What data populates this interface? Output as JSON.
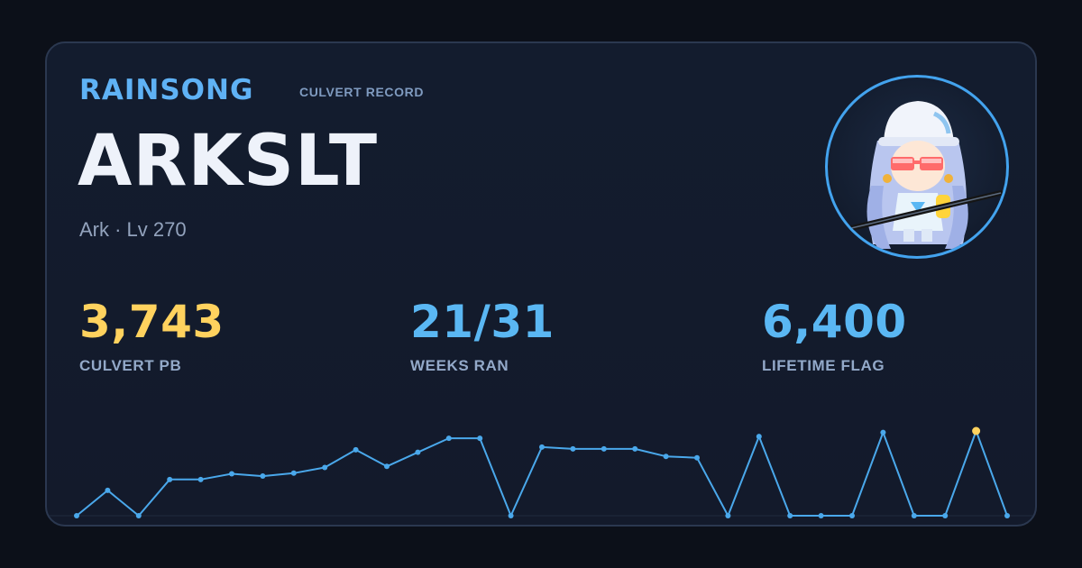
{
  "header": {
    "brand": "RAINSONG",
    "subtitle": "CULVERT RECORD"
  },
  "character": {
    "name": "ARKSLT",
    "info": "Ark · Lv 270",
    "avatar_icon": "character-avatar-icon"
  },
  "stats": [
    {
      "value": "3,743",
      "label": "CULVERT PB",
      "color": "#ffd25e"
    },
    {
      "value": "21/31",
      "label": "WEEKS RAN",
      "color": "#5ab7f3"
    },
    {
      "value": "6,400",
      "label": "LIFETIME FLAG",
      "color": "#5ab7f3"
    }
  ],
  "colors": {
    "accent": "#5fb2f5",
    "line": "#4aa8eb",
    "highlight_point": "#ffd25e"
  },
  "chart_data": {
    "type": "line",
    "title": "",
    "xlabel": "",
    "ylabel": "",
    "grid": false,
    "legend": "none",
    "ylim": [
      0,
      3743
    ],
    "series": [
      {
        "values": [
          0,
          1120,
          0,
          1600,
          1600,
          1850,
          1750,
          1880,
          2130,
          2910,
          2180,
          2800,
          3420,
          3420,
          0,
          3030,
          2950,
          2950,
          2950,
          2620,
          2560,
          0,
          3500,
          0,
          0,
          0,
          3680,
          0,
          0,
          3743,
          0
        ],
        "highlight_index": 29
      }
    ]
  }
}
